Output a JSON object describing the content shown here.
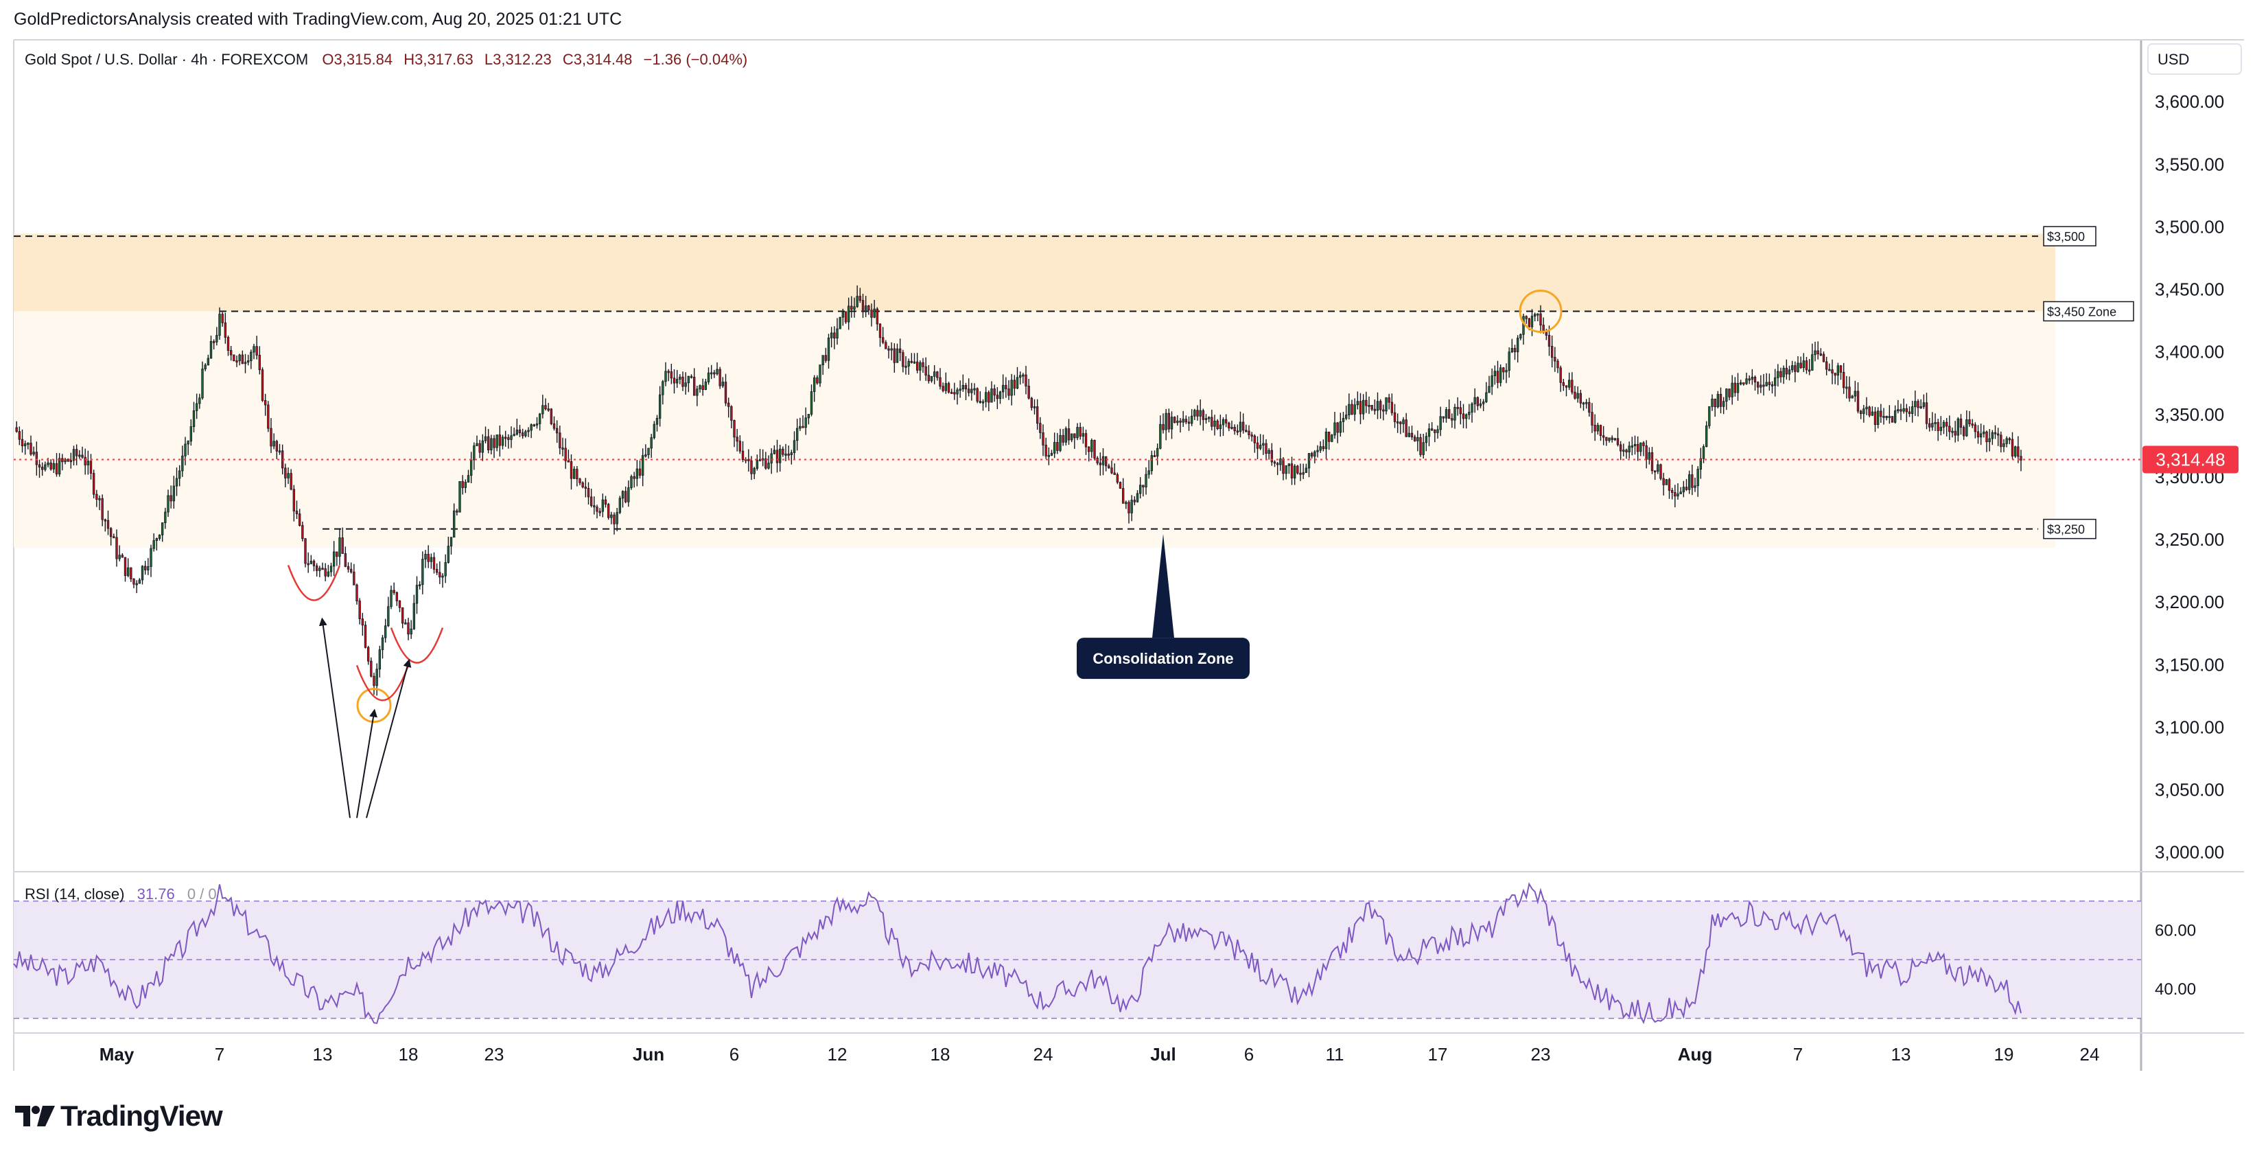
{
  "header": {
    "attribution": "GoldPredictorsAnalysis created with TradingView.com, Aug 20, 2025 01:21 UTC"
  },
  "legend": {
    "symbol": "Gold Spot / U.S. Dollar · 4h · FOREXCOM",
    "open": "O3,315.84",
    "high": "H3,317.63",
    "low": "L3,312.23",
    "close": "C3,314.48",
    "change": "−1.36 (−0.04%)"
  },
  "currency": "USD",
  "last_price_label": "3,314.48",
  "logo_text": "TradingView",
  "rsi_legend": {
    "name": "RSI (14, close)",
    "value": "31.76",
    "extra": "0 / 0"
  },
  "annotations": {
    "zone_3500": "$3,500",
    "zone_3450": "$3,450 Zone",
    "zone_3250": "$3,250",
    "consolidation": "Consolidation Zone"
  },
  "colors": {
    "up": "#1e6b35",
    "down": "#c1121f",
    "rsi_line": "#7e57c2",
    "rsi_band": "#ede7f6",
    "zone_outer": "#fff8ee",
    "zone_inner": "#fde9cc",
    "last_price": "#f23645",
    "circle": "#f5a623"
  },
  "chart_data": {
    "type": "candlestick",
    "symbol": "Gold Spot / U.S. Dollar",
    "interval": "4h",
    "price_axis": {
      "ticks": [
        "3,000.00",
        "3,050.00",
        "3,100.00",
        "3,150.00",
        "3,200.00",
        "3,250.00",
        "3,300.00",
        "3,350.00",
        "3,400.00",
        "3,450.00",
        "3,500.00",
        "3,550.00",
        "3,600.00"
      ],
      "range": [
        2985,
        3650
      ]
    },
    "time_axis": {
      "ticks": [
        "May",
        "7",
        "13",
        "18",
        "23",
        "Jun",
        "6",
        "12",
        "18",
        "24",
        "Jul",
        "6",
        "11",
        "17",
        "23",
        "Aug",
        "7",
        "13",
        "19",
        "24"
      ],
      "range": [
        "2025-04-25",
        "2025-08-27"
      ]
    },
    "price_path": [
      [
        "2025-04-25",
        3340
      ],
      [
        "2025-04-27",
        3305
      ],
      [
        "2025-04-29",
        3320
      ],
      [
        "2025-05-01",
        3240
      ],
      [
        "2025-05-02",
        3215
      ],
      [
        "2025-05-03",
        3240
      ],
      [
        "2025-05-05",
        3320
      ],
      [
        "2025-05-06",
        3380
      ],
      [
        "2025-05-07",
        3425
      ],
      [
        "2025-05-08",
        3390
      ],
      [
        "2025-05-09",
        3405
      ],
      [
        "2025-05-10",
        3330
      ],
      [
        "2025-05-11",
        3300
      ],
      [
        "2025-05-12",
        3235
      ],
      [
        "2025-05-13",
        3225
      ],
      [
        "2025-05-14",
        3245
      ],
      [
        "2025-05-15",
        3205
      ],
      [
        "2025-05-16",
        3135
      ],
      [
        "2025-05-17",
        3210
      ],
      [
        "2025-05-18",
        3175
      ],
      [
        "2025-05-19",
        3240
      ],
      [
        "2025-05-20",
        3225
      ],
      [
        "2025-05-21",
        3290
      ],
      [
        "2025-05-22",
        3325
      ],
      [
        "2025-05-24",
        3330
      ],
      [
        "2025-05-26",
        3355
      ],
      [
        "2025-05-27",
        3320
      ],
      [
        "2025-05-28",
        3290
      ],
      [
        "2025-05-30",
        3270
      ],
      [
        "2025-06-01",
        3320
      ],
      [
        "2025-06-02",
        3385
      ],
      [
        "2025-06-04",
        3370
      ],
      [
        "2025-06-05",
        3390
      ],
      [
        "2025-06-06",
        3330
      ],
      [
        "2025-06-07",
        3310
      ],
      [
        "2025-06-09",
        3320
      ],
      [
        "2025-06-10",
        3340
      ],
      [
        "2025-06-11",
        3390
      ],
      [
        "2025-06-12",
        3420
      ],
      [
        "2025-06-13",
        3440
      ],
      [
        "2025-06-14",
        3435
      ],
      [
        "2025-06-15",
        3400
      ],
      [
        "2025-06-17",
        3385
      ],
      [
        "2025-06-19",
        3370
      ],
      [
        "2025-06-21",
        3365
      ],
      [
        "2025-06-23",
        3380
      ],
      [
        "2025-06-24",
        3320
      ],
      [
        "2025-06-25",
        3330
      ],
      [
        "2025-06-26",
        3340
      ],
      [
        "2025-06-28",
        3300
      ],
      [
        "2025-06-29",
        3275
      ],
      [
        "2025-06-30",
        3300
      ],
      [
        "2025-07-01",
        3345
      ],
      [
        "2025-07-03",
        3350
      ],
      [
        "2025-07-05",
        3340
      ],
      [
        "2025-07-06",
        3335
      ],
      [
        "2025-07-08",
        3310
      ],
      [
        "2025-07-09",
        3300
      ],
      [
        "2025-07-10",
        3325
      ],
      [
        "2025-07-12",
        3355
      ],
      [
        "2025-07-14",
        3360
      ],
      [
        "2025-07-15",
        3340
      ],
      [
        "2025-07-16",
        3325
      ],
      [
        "2025-07-17",
        3345
      ],
      [
        "2025-07-19",
        3355
      ],
      [
        "2025-07-21",
        3390
      ],
      [
        "2025-07-22",
        3425
      ],
      [
        "2025-07-23",
        3425
      ],
      [
        "2025-07-24",
        3385
      ],
      [
        "2025-07-25",
        3370
      ],
      [
        "2025-07-26",
        3345
      ],
      [
        "2025-07-28",
        3320
      ],
      [
        "2025-07-29",
        3325
      ],
      [
        "2025-07-30",
        3300
      ],
      [
        "2025-07-31",
        3290
      ],
      [
        "2025-08-01",
        3300
      ],
      [
        "2025-08-02",
        3360
      ],
      [
        "2025-08-04",
        3375
      ],
      [
        "2025-08-06",
        3380
      ],
      [
        "2025-08-08",
        3395
      ],
      [
        "2025-08-09",
        3390
      ],
      [
        "2025-08-10",
        3370
      ],
      [
        "2025-08-11",
        3350
      ],
      [
        "2025-08-12",
        3345
      ],
      [
        "2025-08-14",
        3360
      ],
      [
        "2025-08-15",
        3340
      ],
      [
        "2025-08-17",
        3340
      ],
      [
        "2025-08-18",
        3335
      ],
      [
        "2025-08-19",
        3330
      ],
      [
        "2025-08-20",
        3314.48
      ]
    ],
    "levels": [
      {
        "label": "$3,500",
        "price": 3493
      },
      {
        "label": "$3,450 Zone",
        "price": 3433
      },
      {
        "label": "$3,250",
        "price": 3259
      }
    ],
    "last_price": 3314.48,
    "rsi": {
      "name": "RSI (14, close)",
      "current": 31.76,
      "ticks": [
        "40.00",
        "60.00"
      ],
      "bands": [
        30,
        50,
        70
      ],
      "path": [
        [
          "2025-04-25",
          50
        ],
        [
          "2025-04-28",
          44
        ],
        [
          "2025-04-30",
          50
        ],
        [
          "2025-05-02",
          35
        ],
        [
          "2025-05-05",
          55
        ],
        [
          "2025-05-07",
          72
        ],
        [
          "2025-05-09",
          60
        ],
        [
          "2025-05-11",
          45
        ],
        [
          "2025-05-13",
          35
        ],
        [
          "2025-05-15",
          38
        ],
        [
          "2025-05-16",
          30
        ],
        [
          "2025-05-18",
          50
        ],
        [
          "2025-05-20",
          55
        ],
        [
          "2025-05-22",
          68
        ],
        [
          "2025-05-25",
          66
        ],
        [
          "2025-05-27",
          52
        ],
        [
          "2025-05-29",
          45
        ],
        [
          "2025-06-01",
          60
        ],
        [
          "2025-06-03",
          68
        ],
        [
          "2025-06-05",
          62
        ],
        [
          "2025-06-07",
          40
        ],
        [
          "2025-06-10",
          55
        ],
        [
          "2025-06-12",
          68
        ],
        [
          "2025-06-14",
          70
        ],
        [
          "2025-06-16",
          48
        ],
        [
          "2025-06-19",
          50
        ],
        [
          "2025-06-22",
          44
        ],
        [
          "2025-06-24",
          36
        ],
        [
          "2025-06-27",
          44
        ],
        [
          "2025-06-29",
          33
        ],
        [
          "2025-07-01",
          60
        ],
        [
          "2025-07-03",
          58
        ],
        [
          "2025-07-05",
          55
        ],
        [
          "2025-07-07",
          45
        ],
        [
          "2025-07-09",
          36
        ],
        [
          "2025-07-11",
          50
        ],
        [
          "2025-07-13",
          68
        ],
        [
          "2025-07-15",
          50
        ],
        [
          "2025-07-17",
          56
        ],
        [
          "2025-07-20",
          60
        ],
        [
          "2025-07-22",
          74
        ],
        [
          "2025-07-23",
          72
        ],
        [
          "2025-07-25",
          45
        ],
        [
          "2025-07-27",
          36
        ],
        [
          "2025-07-29",
          32
        ],
        [
          "2025-08-01",
          34
        ],
        [
          "2025-08-02",
          62
        ],
        [
          "2025-08-04",
          66
        ],
        [
          "2025-08-07",
          62
        ],
        [
          "2025-08-09",
          63
        ],
        [
          "2025-08-11",
          48
        ],
        [
          "2025-08-13",
          45
        ],
        [
          "2025-08-15",
          50
        ],
        [
          "2025-08-17",
          44
        ],
        [
          "2025-08-19",
          42
        ],
        [
          "2025-08-20",
          31.76
        ]
      ]
    }
  }
}
